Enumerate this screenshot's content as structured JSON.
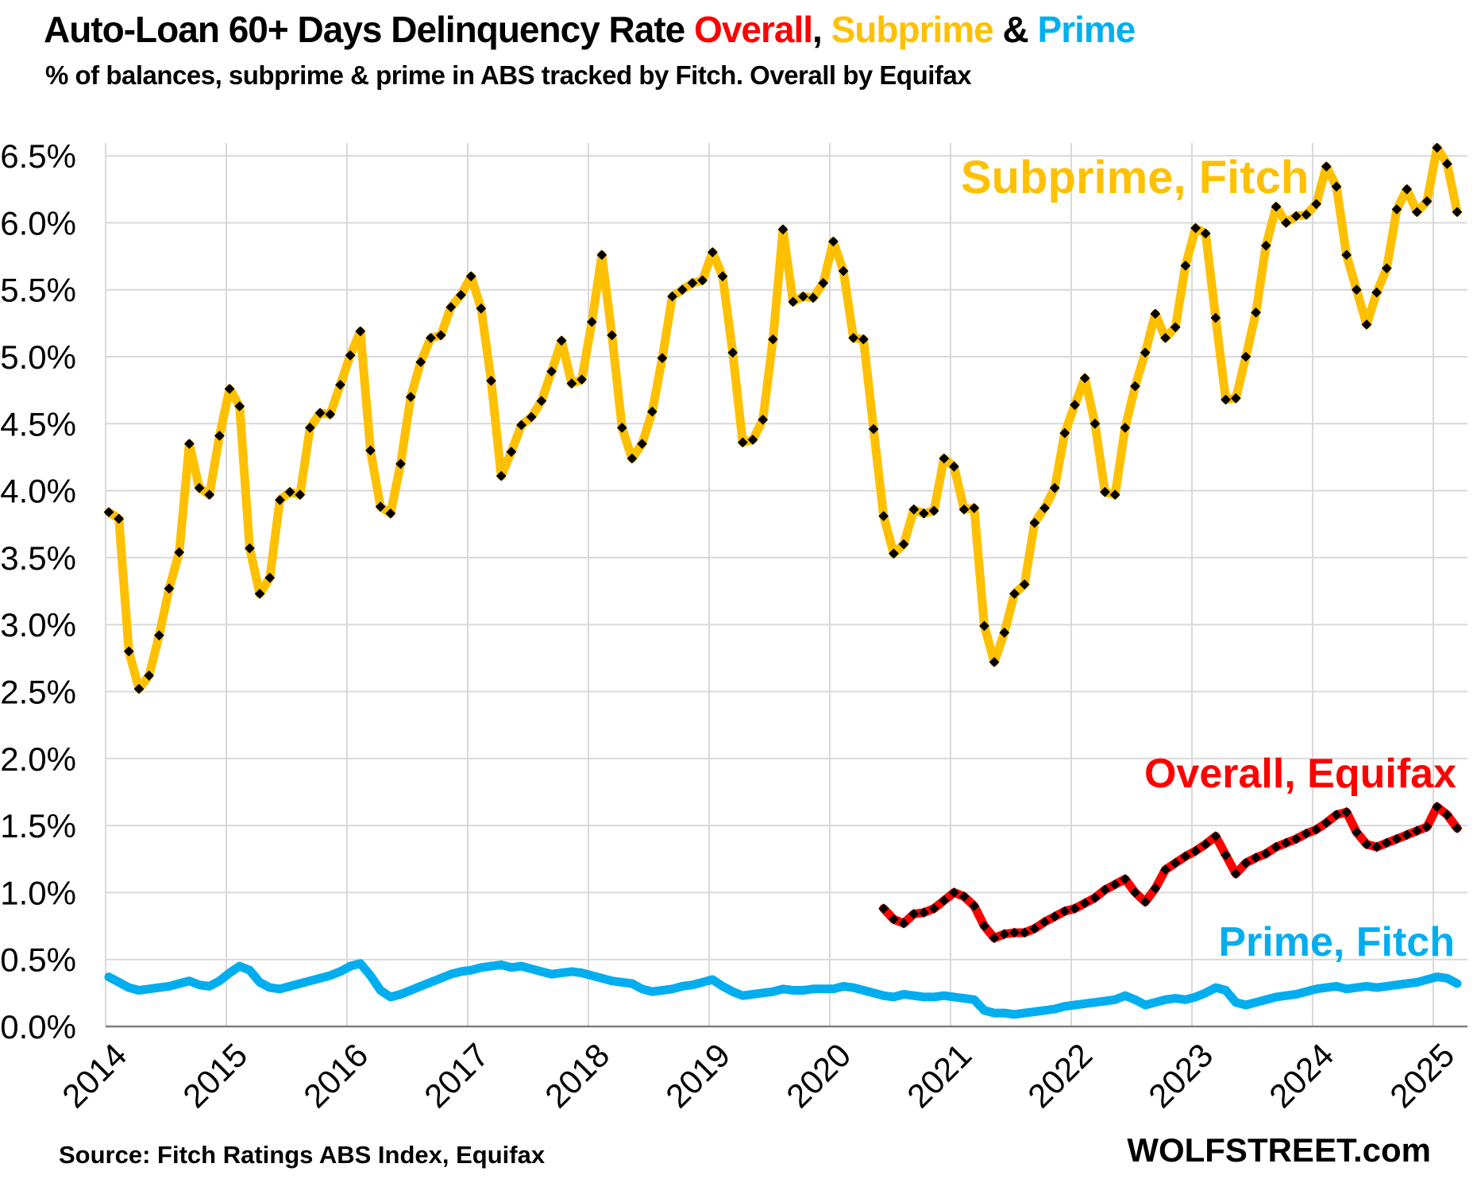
{
  "header": {
    "title_prefix": "Auto-Loan 60+ Days Delinquency Rate ",
    "title_overall": "Overall",
    "title_sep1": ", ",
    "title_subprime": "Subprime",
    "title_sep2": " & ",
    "title_prime": "Prime",
    "subtitle": "% of balances, subprime & prime in ABS tracked by Fitch. Overall by Equifax"
  },
  "footer": {
    "source": "Source: Fitch Ratings ABS Index, Equifax",
    "brand": "WOLFSTREET.com"
  },
  "colors": {
    "subprime": "#FFC000",
    "overall": "#FF0000",
    "prime": "#00AEEF",
    "marker": "#000000",
    "grid": "#D9D9D9",
    "axis": "#7F7F7F",
    "text": "#000000"
  },
  "chart_data": {
    "type": "line",
    "title": "Auto-Loan 60+ Days Delinquency Rate Overall, Subprime & Prime",
    "subtitle": "% of balances, subprime & prime in ABS tracked by Fitch. Overall by Equifax",
    "x_frequency": "monthly",
    "x_start": "2014-01",
    "x_end": "2025-03",
    "x_tick_labels": [
      "2014",
      "2015",
      "2016",
      "2017",
      "2018",
      "2019",
      "2020",
      "2021",
      "2022",
      "2023",
      "2024",
      "2025"
    ],
    "y_tick_labels": [
      "0.0%",
      "0.5%",
      "1.0%",
      "1.5%",
      "2.0%",
      "2.5%",
      "3.0%",
      "3.5%",
      "4.0%",
      "4.5%",
      "5.0%",
      "5.5%",
      "6.0%",
      "6.5%"
    ],
    "ylim": [
      0,
      6.5
    ],
    "grid": true,
    "legend_position": "on-chart-annotations",
    "series": [
      {
        "name": "Prime, Fitch",
        "color": "#00AEEF",
        "marker": false,
        "start_index": 0,
        "values": [
          0.37,
          0.33,
          0.29,
          0.27,
          0.28,
          0.29,
          0.3,
          0.32,
          0.34,
          0.31,
          0.3,
          0.34,
          0.4,
          0.45,
          0.42,
          0.33,
          0.29,
          0.28,
          0.3,
          0.32,
          0.34,
          0.36,
          0.38,
          0.41,
          0.45,
          0.47,
          0.38,
          0.27,
          0.22,
          0.24,
          0.27,
          0.3,
          0.33,
          0.36,
          0.39,
          0.41,
          0.42,
          0.44,
          0.45,
          0.46,
          0.44,
          0.45,
          0.43,
          0.41,
          0.39,
          0.4,
          0.41,
          0.4,
          0.38,
          0.36,
          0.34,
          0.33,
          0.32,
          0.28,
          0.26,
          0.27,
          0.28,
          0.3,
          0.31,
          0.33,
          0.35,
          0.3,
          0.26,
          0.23,
          0.24,
          0.25,
          0.26,
          0.28,
          0.27,
          0.27,
          0.28,
          0.28,
          0.28,
          0.3,
          0.29,
          0.27,
          0.25,
          0.23,
          0.22,
          0.24,
          0.23,
          0.22,
          0.22,
          0.23,
          0.22,
          0.21,
          0.2,
          0.12,
          0.1,
          0.1,
          0.09,
          0.1,
          0.11,
          0.12,
          0.13,
          0.15,
          0.16,
          0.17,
          0.18,
          0.19,
          0.2,
          0.23,
          0.2,
          0.16,
          0.18,
          0.2,
          0.21,
          0.2,
          0.22,
          0.25,
          0.29,
          0.27,
          0.18,
          0.16,
          0.18,
          0.2,
          0.22,
          0.23,
          0.24,
          0.26,
          0.28,
          0.29,
          0.3,
          0.28,
          0.29,
          0.3,
          0.29,
          0.3,
          0.31,
          0.32,
          0.33,
          0.35,
          0.37,
          0.36,
          0.32
        ]
      },
      {
        "name": "Overall, Equifax",
        "color": "#FF0000",
        "marker": true,
        "start_index": 77,
        "values": [
          0.88,
          0.8,
          0.77,
          0.84,
          0.85,
          0.88,
          0.94,
          1.0,
          0.97,
          0.9,
          0.75,
          0.66,
          0.69,
          0.7,
          0.7,
          0.73,
          0.78,
          0.82,
          0.86,
          0.88,
          0.92,
          0.96,
          1.02,
          1.06,
          1.1,
          1.0,
          0.93,
          1.03,
          1.17,
          1.22,
          1.27,
          1.31,
          1.36,
          1.42,
          1.28,
          1.14,
          1.22,
          1.26,
          1.29,
          1.34,
          1.37,
          1.4,
          1.44,
          1.47,
          1.52,
          1.58,
          1.6,
          1.45,
          1.36,
          1.34,
          1.37,
          1.4,
          1.43,
          1.46,
          1.49,
          1.64,
          1.58,
          1.48
        ]
      },
      {
        "name": "Subprime, Fitch",
        "color": "#FFC000",
        "marker": true,
        "start_index": 0,
        "values": [
          3.84,
          3.79,
          2.8,
          2.52,
          2.62,
          2.92,
          3.27,
          3.54,
          4.35,
          4.02,
          3.97,
          4.41,
          4.76,
          4.63,
          3.57,
          3.23,
          3.35,
          3.93,
          3.99,
          3.97,
          4.47,
          4.58,
          4.57,
          4.79,
          5.01,
          5.19,
          4.3,
          3.88,
          3.83,
          4.2,
          4.7,
          4.96,
          5.14,
          5.16,
          5.37,
          5.46,
          5.6,
          5.36,
          4.82,
          4.11,
          4.29,
          4.49,
          4.55,
          4.67,
          4.89,
          5.12,
          4.8,
          4.83,
          5.26,
          5.76,
          5.16,
          4.47,
          4.24,
          4.35,
          4.59,
          4.99,
          5.45,
          5.5,
          5.55,
          5.57,
          5.78,
          5.6,
          5.03,
          4.36,
          4.38,
          4.53,
          5.13,
          5.95,
          5.41,
          5.45,
          5.44,
          5.55,
          5.86,
          5.64,
          5.14,
          5.13,
          4.46,
          3.81,
          3.53,
          3.6,
          3.86,
          3.83,
          3.85,
          4.24,
          4.18,
          3.86,
          3.87,
          2.99,
          2.72,
          2.94,
          3.23,
          3.3,
          3.76,
          3.87,
          4.02,
          4.43,
          4.64,
          4.84,
          4.5,
          3.99,
          3.97,
          4.47,
          4.78,
          5.03,
          5.32,
          5.14,
          5.22,
          5.68,
          5.96,
          5.92,
          5.29,
          4.68,
          4.69,
          5.0,
          5.33,
          5.83,
          6.12,
          6.0,
          6.05,
          6.06,
          6.14,
          6.42,
          6.27,
          5.76,
          5.5,
          5.24,
          5.48,
          5.66,
          6.1,
          6.25,
          6.08,
          6.16,
          6.56,
          6.44,
          6.08
        ]
      }
    ],
    "annotations": [
      {
        "text": "Subprime, Fitch",
        "color": "#FFC000"
      },
      {
        "text": "Overall, Equifax",
        "color": "#FF0000"
      },
      {
        "text": "Prime, Fitch",
        "color": "#00AEEF"
      }
    ]
  }
}
